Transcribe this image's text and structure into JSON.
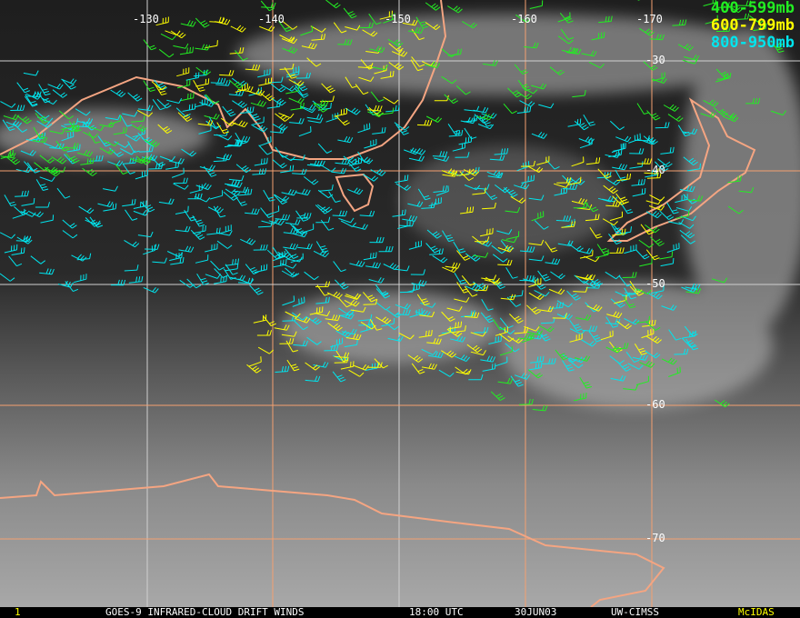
{
  "legend": [
    {
      "label": "400-599mb",
      "color": "#22ee22"
    },
    {
      "label": "600-799mb",
      "color": "#ffff00"
    },
    {
      "label": "800-950mb",
      "color": "#00e5ee"
    }
  ],
  "longitude_labels": [
    "-130",
    "-140",
    "-150",
    "-160",
    "-170"
  ],
  "latitude_labels": [
    "-30",
    "-40",
    "-50",
    "-60",
    "-70"
  ],
  "footer": {
    "frame": "1",
    "title": "GOES-9 INFRARED-CLOUD DRIFT WINDS",
    "time": "18:00 UTC",
    "date": "30JUN03",
    "source": "UW-CIMSS",
    "software": "McIDAS"
  },
  "colors": {
    "coastline": "#f4a582",
    "grid_orange": "#f4a070",
    "grid_white": "#d0d0d0",
    "footer_accent": "#ffff00"
  }
}
